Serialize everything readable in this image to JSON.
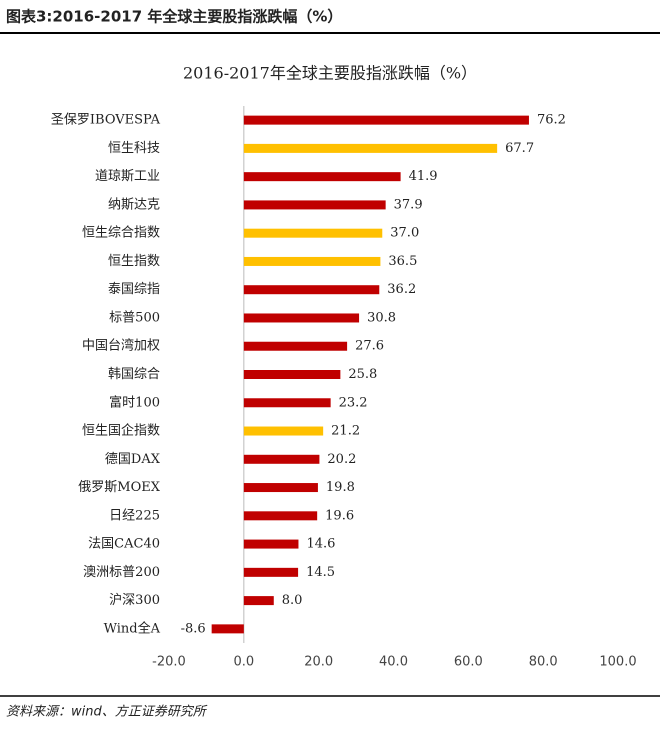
{
  "header": "图表3:2016-2017 年全球主要股指涨跌幅（%）",
  "source": "资料来源：wind、方正证券研究所",
  "chart_data": {
    "type": "barh",
    "title": "2016-2017年全球主要股指涨跌幅（%）",
    "categories": [
      "圣保罗IBOVESPA",
      "恒生科技",
      "道琼斯工业",
      "纳斯达克",
      "恒生综合指数",
      "恒生指数",
      "泰国综指",
      "标普500",
      "中国台湾加权",
      "韩国综合",
      "富时100",
      "恒生国企指数",
      "德国DAX",
      "俄罗斯MOEX",
      "日经225",
      "法国CAC40",
      "澳洲标普200",
      "沪深300",
      "Wind全A"
    ],
    "values": [
      76.2,
      67.7,
      41.9,
      37.9,
      37.0,
      36.5,
      36.2,
      30.8,
      27.6,
      25.8,
      23.2,
      21.2,
      20.2,
      19.8,
      19.6,
      14.6,
      14.5,
      8.0,
      -8.6
    ],
    "value_labels": [
      "76.2",
      "67.7",
      "41.9",
      "37.9",
      "37.0",
      "36.5",
      "36.2",
      "30.8",
      "27.6",
      "25.8",
      "23.2",
      "21.2",
      "20.2",
      "19.8",
      "19.6",
      "14.6",
      "14.5",
      "8.0",
      "-8.6"
    ],
    "colors": [
      "#C00000",
      "#FFC000",
      "#C00000",
      "#C00000",
      "#FFC000",
      "#FFC000",
      "#C00000",
      "#C00000",
      "#C00000",
      "#C00000",
      "#C00000",
      "#FFC000",
      "#C00000",
      "#C00000",
      "#C00000",
      "#C00000",
      "#C00000",
      "#C00000",
      "#C00000"
    ],
    "xlim": [
      -20,
      100
    ],
    "xticks": [
      {
        "value": -20,
        "label": "-20.0"
      },
      {
        "value": 0,
        "label": "0.0"
      },
      {
        "value": 20,
        "label": "20.0"
      },
      {
        "value": 40,
        "label": "40.0"
      },
      {
        "value": 60,
        "label": "60.0"
      },
      {
        "value": 80,
        "label": "80.0"
      },
      {
        "value": 100,
        "label": "100.0"
      }
    ],
    "grid": false
  }
}
